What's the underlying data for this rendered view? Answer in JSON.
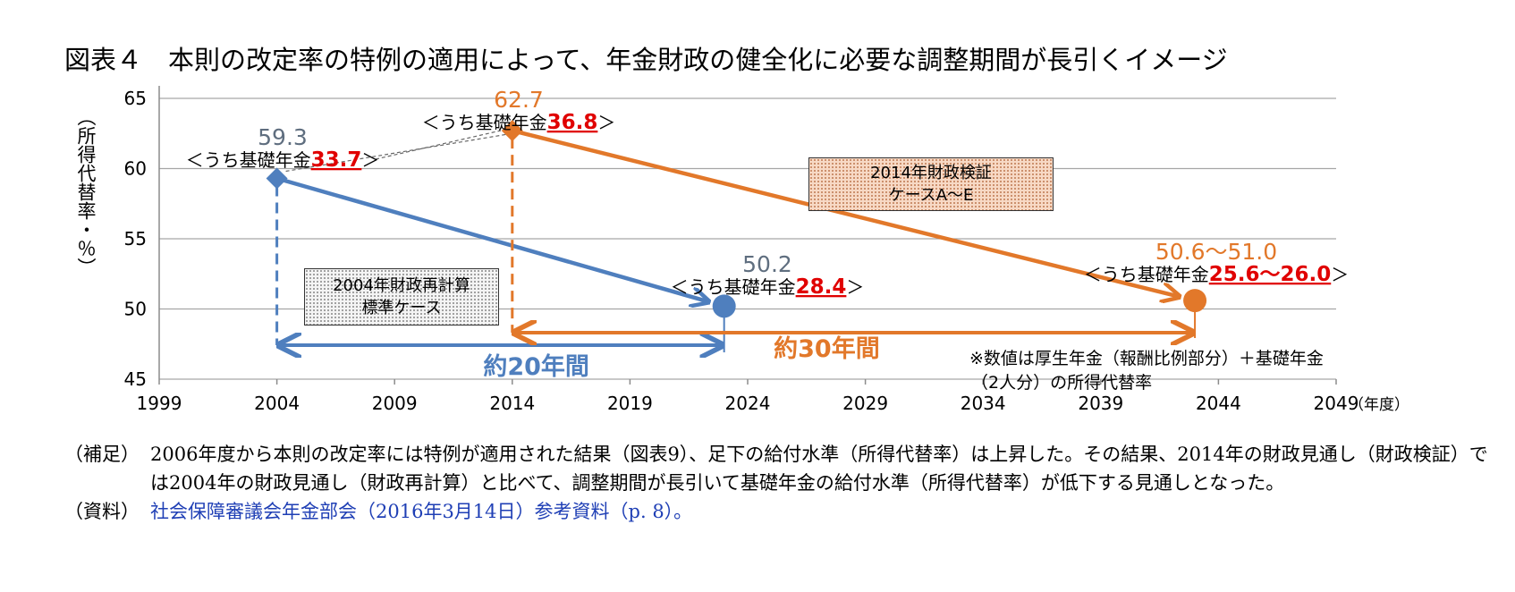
{
  "page": {
    "title": "図表４　本則の改定率の特例の適用によって、年金財政の健全化に必要な調整期間が長引くイメージ",
    "notes": [
      {
        "label": "（補足）",
        "text": "2006年度から本則の改定率には特例が適用された結果（図表9）、足下の給付水準（所得代替率）は上昇した。その結果、2014年の財政見通し（財政検証）では2004年の財政見通し（財政再計算）と比べて、調整期間が長引いて基礎年金の給付水準（所得代替率）が低下する見通しとなった。"
      },
      {
        "label": "（資料）",
        "text": "社会保障審議会年金部会（2016年3月14日）参考資料（p. 8）。"
      }
    ]
  },
  "chart_data": {
    "type": "line",
    "ylabel": "（所得代替率・％）",
    "xlabel_unit": "（年度）",
    "xlim": [
      1999,
      2049
    ],
    "ylim": [
      45,
      65
    ],
    "x_ticks": [
      1999,
      2004,
      2009,
      2014,
      2019,
      2024,
      2029,
      2034,
      2039,
      2044,
      2049
    ],
    "y_ticks": [
      45,
      50,
      55,
      60,
      65
    ],
    "grid": "horizontal",
    "series": [
      {
        "key": "s2004",
        "color": "#4f7fbe",
        "box_lines": [
          "2004年財政再計算",
          "標準ケース"
        ],
        "points": [
          {
            "x": 2004,
            "y": 59.3
          },
          {
            "x": 2023,
            "y": 50.2
          }
        ],
        "start_label": {
          "value": "59.3",
          "prefix": "＜うち基礎年金",
          "basic": "33.7",
          "suffix": "＞"
        },
        "end_label": {
          "value": "50.2",
          "prefix": "＜うち基礎年金",
          "basic": "28.4",
          "suffix": "＞"
        },
        "period_label": "約20年間",
        "period_x": [
          2004,
          2023
        ]
      },
      {
        "key": "s2014",
        "color": "#e2782a",
        "box_lines": [
          "2014年財政検証",
          "ケースA～E"
        ],
        "points": [
          {
            "x": 2014,
            "y": 62.7
          },
          {
            "x": 2043,
            "y": 50.6
          }
        ],
        "start_label": {
          "value": "62.7",
          "prefix": "＜うち基礎年金",
          "basic": "36.8",
          "suffix": "＞"
        },
        "end_label": {
          "value": "50.6～51.0",
          "prefix": "＜うち基礎年金",
          "basic": "25.6～26.0",
          "suffix": "＞"
        },
        "period_label": "約30年間",
        "period_x": [
          2014,
          2043
        ]
      }
    ],
    "annotation": [
      "※数値は厚生年金（報酬比例部分）＋基礎年金",
      "（2人分）の所得代替率"
    ],
    "highlight_color": "#e00000"
  }
}
